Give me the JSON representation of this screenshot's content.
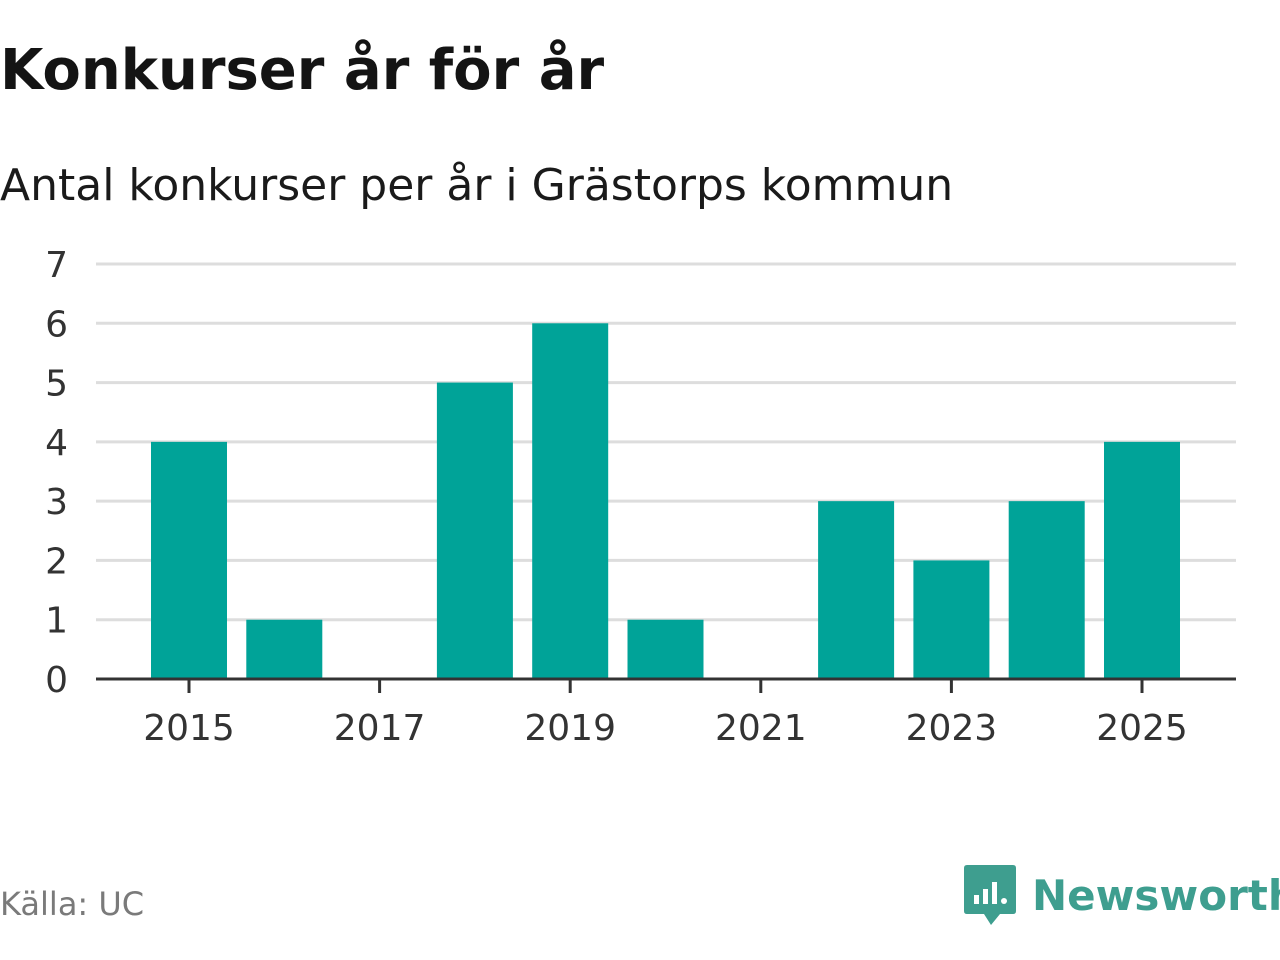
{
  "header": {
    "title": "Konkurser år för år",
    "subtitle": "Antal konkurser per år i Grästorps kommun"
  },
  "footer": {
    "source": "Källa: UC",
    "brand_name": "Newsworthy"
  },
  "colors": {
    "bar": "#00a398",
    "grid": "#dddddd",
    "axis": "#333333",
    "brand": "#3e9e8f"
  },
  "icons": {
    "brand_logo": "newsworthy-logo-icon"
  },
  "chart_data": {
    "type": "bar",
    "x": [
      2015,
      2016,
      2017,
      2018,
      2019,
      2020,
      2021,
      2022,
      2023,
      2024,
      2025
    ],
    "values": [
      4,
      1,
      0,
      5,
      6,
      1,
      0,
      3,
      2,
      3,
      4
    ],
    "xticks": [
      "2015",
      "2017",
      "2019",
      "2021",
      "2023",
      "2025"
    ],
    "yticks": [
      "0",
      "1",
      "2",
      "3",
      "4",
      "5",
      "6",
      "7"
    ],
    "ylim": [
      0,
      7
    ],
    "grid": true
  }
}
